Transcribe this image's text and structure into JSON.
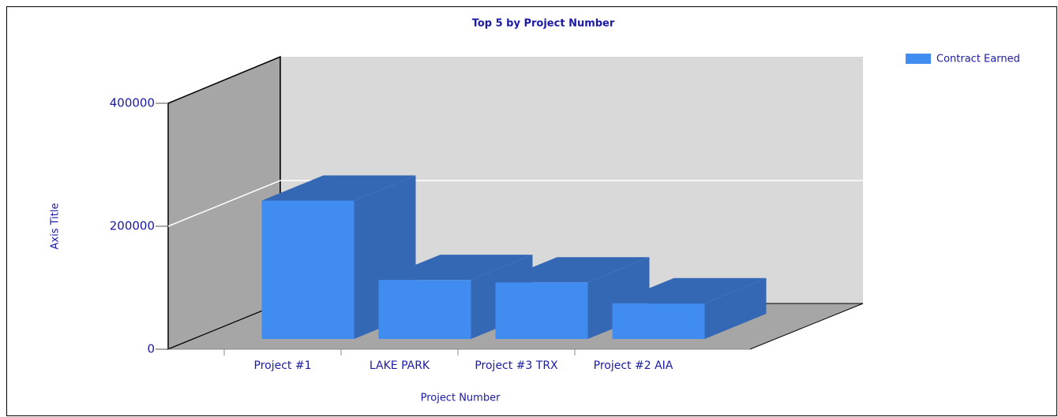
{
  "chart_data": {
    "type": "bar",
    "title": "Top 5 by  Project Number",
    "x_label": "Project Number",
    "y_label": "Axis Title",
    "categories": [
      "Project #1",
      "LAKE PARK",
      "Project #3 TRX",
      "Project #2 AIA"
    ],
    "series": [
      {
        "name": "Contract Earned",
        "color": "#418cf0",
        "values": [
          225000,
          96000,
          92000,
          58000
        ]
      }
    ],
    "ylim": [
      0,
      400000
    ],
    "yticks": [
      0,
      200000,
      400000
    ],
    "grid": true,
    "legend": "top-right",
    "3d": true
  }
}
